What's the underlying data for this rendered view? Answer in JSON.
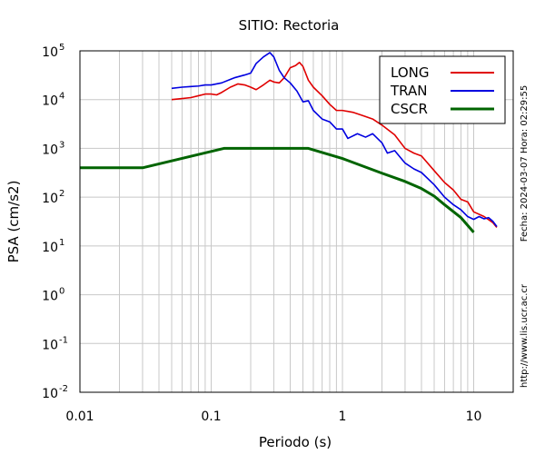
{
  "chart_data": {
    "type": "line",
    "title": "SITIO: Rectoria",
    "xlabel": "Periodo (s)",
    "ylabel": "PSA (cm/s2)",
    "xscale": "log",
    "yscale": "log",
    "xlim": [
      0.01,
      20
    ],
    "ylim": [
      0.01,
      100000
    ],
    "grid": "x-minor-and-major, y-major",
    "legend": "top-right",
    "x_ticks": [
      {
        "value": 0.01,
        "label": "0.01"
      },
      {
        "value": 0.1,
        "label": "0.1"
      },
      {
        "value": 1,
        "label": "1"
      },
      {
        "value": 10,
        "label": "10"
      }
    ],
    "y_ticks": [
      {
        "value": 0.01,
        "base": "10",
        "exp": "-2"
      },
      {
        "value": 0.1,
        "base": "10",
        "exp": "-1"
      },
      {
        "value": 1,
        "base": "10",
        "exp": "0"
      },
      {
        "value": 10,
        "base": "10",
        "exp": "1"
      },
      {
        "value": 100,
        "base": "10",
        "exp": "2"
      },
      {
        "value": 1000,
        "base": "10",
        "exp": "3"
      },
      {
        "value": 10000,
        "base": "10",
        "exp": "4"
      },
      {
        "value": 100000,
        "base": "10",
        "exp": "5"
      }
    ],
    "side_texts": {
      "date": "Fecha: 2024-03-07 Hora: 02:29:55",
      "url": "http://www.lis.ucr.ac.cr"
    },
    "series": [
      {
        "name": "LONG",
        "color": "#e00000",
        "width": 1.6,
        "points": [
          [
            0.05,
            10000
          ],
          [
            0.06,
            10500
          ],
          [
            0.07,
            11000
          ],
          [
            0.08,
            12000
          ],
          [
            0.09,
            13000
          ],
          [
            0.1,
            13000
          ],
          [
            0.11,
            12500
          ],
          [
            0.12,
            14000
          ],
          [
            0.14,
            18000
          ],
          [
            0.16,
            21000
          ],
          [
            0.18,
            20000
          ],
          [
            0.2,
            18000
          ],
          [
            0.22,
            16000
          ],
          [
            0.25,
            20000
          ],
          [
            0.28,
            25000
          ],
          [
            0.3,
            23000
          ],
          [
            0.33,
            22000
          ],
          [
            0.36,
            28000
          ],
          [
            0.4,
            45000
          ],
          [
            0.44,
            50000
          ],
          [
            0.47,
            58000
          ],
          [
            0.5,
            48000
          ],
          [
            0.55,
            25000
          ],
          [
            0.6,
            18000
          ],
          [
            0.7,
            12000
          ],
          [
            0.8,
            8000
          ],
          [
            0.9,
            6000
          ],
          [
            1.0,
            6000
          ],
          [
            1.2,
            5500
          ],
          [
            1.4,
            4800
          ],
          [
            1.7,
            4000
          ],
          [
            2.0,
            3000
          ],
          [
            2.5,
            1900
          ],
          [
            3.0,
            1000
          ],
          [
            3.5,
            800
          ],
          [
            4.0,
            700
          ],
          [
            5.0,
            350
          ],
          [
            6.0,
            200
          ],
          [
            7.0,
            140
          ],
          [
            8.0,
            90
          ],
          [
            9.0,
            80
          ],
          [
            10.0,
            50
          ],
          [
            12.0,
            40
          ],
          [
            14.0,
            30
          ],
          [
            15.0,
            24
          ]
        ]
      },
      {
        "name": "TRAN",
        "color": "#0000e0",
        "width": 1.6,
        "points": [
          [
            0.05,
            17000
          ],
          [
            0.06,
            18000
          ],
          [
            0.07,
            18500
          ],
          [
            0.08,
            19000
          ],
          [
            0.09,
            20000
          ],
          [
            0.1,
            20000
          ],
          [
            0.12,
            22000
          ],
          [
            0.15,
            28000
          ],
          [
            0.18,
            32000
          ],
          [
            0.2,
            35000
          ],
          [
            0.22,
            55000
          ],
          [
            0.25,
            75000
          ],
          [
            0.28,
            92000
          ],
          [
            0.3,
            75000
          ],
          [
            0.33,
            40000
          ],
          [
            0.36,
            28000
          ],
          [
            0.4,
            22000
          ],
          [
            0.45,
            15000
          ],
          [
            0.5,
            9000
          ],
          [
            0.55,
            9500
          ],
          [
            0.6,
            6000
          ],
          [
            0.7,
            4000
          ],
          [
            0.8,
            3500
          ],
          [
            0.9,
            2500
          ],
          [
            1.0,
            2500
          ],
          [
            1.1,
            1600
          ],
          [
            1.3,
            2000
          ],
          [
            1.5,
            1700
          ],
          [
            1.7,
            2000
          ],
          [
            2.0,
            1300
          ],
          [
            2.2,
            800
          ],
          [
            2.5,
            900
          ],
          [
            3.0,
            500
          ],
          [
            3.5,
            380
          ],
          [
            4.0,
            320
          ],
          [
            5.0,
            180
          ],
          [
            6.0,
            100
          ],
          [
            7.0,
            70
          ],
          [
            8.0,
            55
          ],
          [
            9.0,
            40
          ],
          [
            10.0,
            35
          ],
          [
            11.0,
            40
          ],
          [
            12.0,
            36
          ],
          [
            13.0,
            38
          ],
          [
            14.0,
            32
          ],
          [
            15.0,
            25
          ]
        ]
      },
      {
        "name": "CSCR",
        "color": "#006400",
        "width": 3,
        "points": [
          [
            0.01,
            400
          ],
          [
            0.03,
            400
          ],
          [
            0.125,
            1000
          ],
          [
            0.55,
            1000
          ],
          [
            1.0,
            620
          ],
          [
            2.0,
            310
          ],
          [
            3.0,
            210
          ],
          [
            4.0,
            150
          ],
          [
            5.0,
            105
          ],
          [
            6.0,
            70
          ],
          [
            8.0,
            38
          ],
          [
            10.0,
            19
          ]
        ]
      }
    ]
  }
}
